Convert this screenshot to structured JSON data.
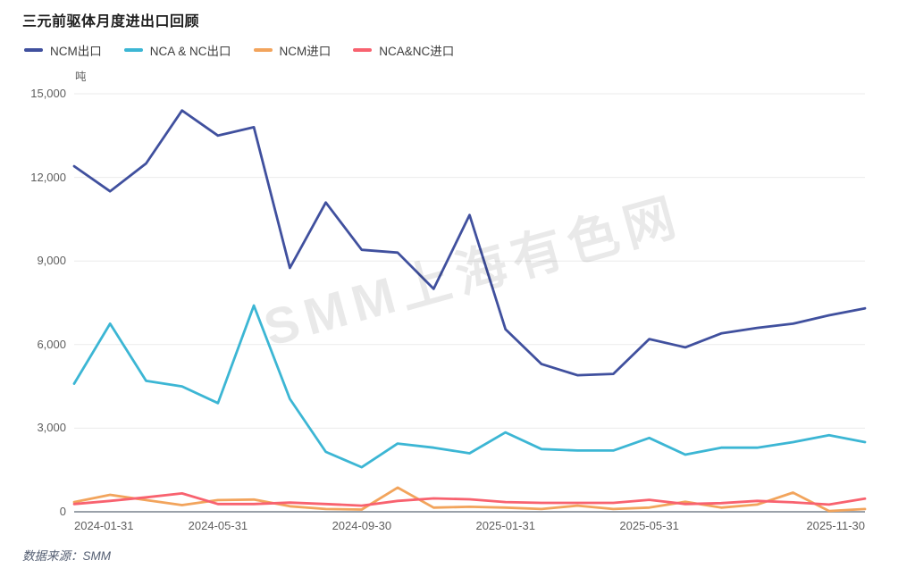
{
  "title": "三元前驱体月度进出口回顾",
  "unit": "吨",
  "watermark": "SMM上海有色网",
  "watermark_fragment": "M",
  "source_note": "数据来源：SMM",
  "chart_data": {
    "type": "line",
    "title": "三元前驱体月度进出口回顾",
    "ylabel": "吨",
    "ylim": [
      0,
      15000
    ],
    "y_ticks": [
      0,
      3000,
      6000,
      9000,
      12000,
      15000
    ],
    "grid": "horizontal",
    "legend_position": "top-left",
    "x": [
      "2024-01-31",
      "2024-02-29",
      "2024-03-31",
      "2024-04-30",
      "2024-05-31",
      "2024-06-30",
      "2024-07-31",
      "2024-08-31",
      "2024-09-30",
      "2024-10-31",
      "2024-11-30",
      "2024-12-31",
      "2025-01-31",
      "2025-02-28",
      "2025-03-31",
      "2025-04-30",
      "2025-05-31",
      "2025-06-30",
      "2025-07-31",
      "2025-08-31",
      "2025-09-30",
      "2025-10-31",
      "2025-11-30"
    ],
    "x_tick_indices": [
      0,
      4,
      8,
      12,
      16,
      22
    ],
    "series": [
      {
        "name": "NCM出口",
        "color": "#40509e",
        "values": [
          12400,
          11500,
          12500,
          14400,
          13500,
          13800,
          8750,
          11100,
          9400,
          9300,
          8000,
          10650,
          6550,
          5300,
          4900,
          4950,
          6200,
          5900,
          6400,
          6600,
          6750,
          7050,
          7300
        ]
      },
      {
        "name": "NCA & NC出口",
        "color": "#3cb6d4",
        "values": [
          4600,
          6750,
          4700,
          4500,
          3900,
          7400,
          4050,
          2150,
          1600,
          2450,
          2300,
          2100,
          2850,
          2250,
          2200,
          2200,
          2650,
          2050,
          2300,
          2300,
          2500,
          2750,
          2500
        ]
      },
      {
        "name": "NCM进口",
        "color": "#f2a45c",
        "values": [
          350,
          610,
          420,
          240,
          420,
          440,
          200,
          100,
          80,
          870,
          150,
          180,
          150,
          100,
          220,
          100,
          150,
          360,
          150,
          260,
          690,
          30,
          100
        ]
      },
      {
        "name": "NCA&NC进口",
        "color": "#f8626f",
        "values": [
          280,
          390,
          520,
          660,
          280,
          280,
          330,
          280,
          220,
          390,
          480,
          450,
          350,
          320,
          320,
          320,
          430,
          280,
          310,
          390,
          340,
          260,
          470
        ]
      }
    ]
  }
}
